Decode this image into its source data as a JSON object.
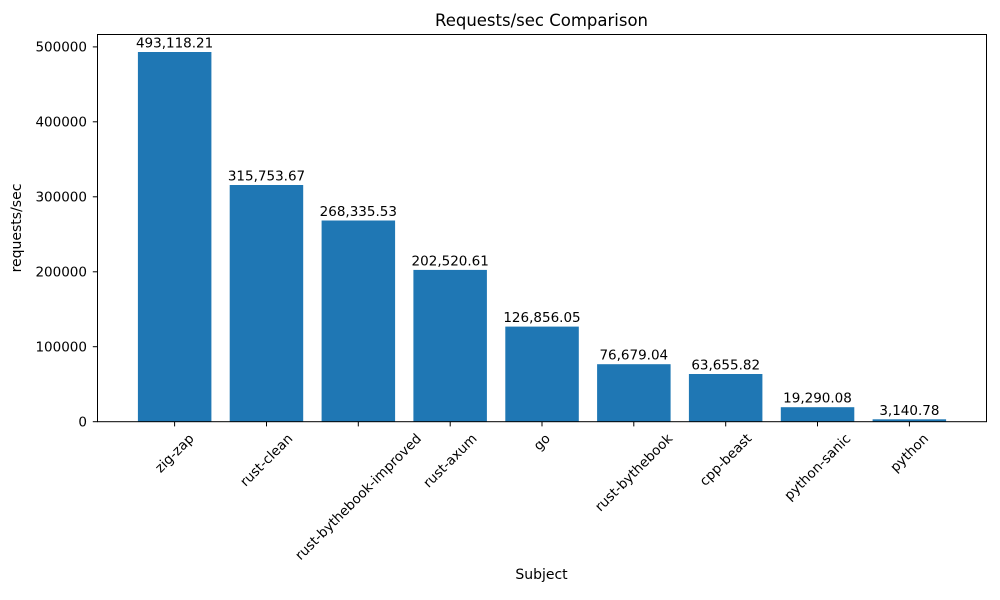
{
  "chart_data": {
    "type": "bar",
    "title": "Requests/sec Comparison",
    "xlabel": "Subject",
    "ylabel": "requests/sec",
    "categories": [
      "zig-zap",
      "rust-clean",
      "rust-bythebook-improved",
      "rust-axum",
      "go",
      "rust-bythebook",
      "cpp-beast",
      "python-sanic",
      "python"
    ],
    "values": [
      493118.21,
      315753.67,
      268335.53,
      202520.61,
      126856.05,
      76679.04,
      63655.82,
      19290.08,
      3140.78
    ],
    "bar_labels": [
      "493,118.21",
      "315,753.67",
      "268,335.53",
      "202,520.61",
      "126,856.05",
      "76,679.04",
      "63,655.82",
      "19,290.08",
      "3,140.78"
    ],
    "ytick_values": [
      0,
      100000,
      200000,
      300000,
      400000,
      500000
    ],
    "ytick_labels": [
      "0",
      "100000",
      "200000",
      "300000",
      "400000",
      "500000"
    ],
    "ylim": [
      0,
      516500
    ],
    "xtick_rotation_deg": 45,
    "bar_color": "#1f77b4",
    "axis_color": "#000000",
    "background_color": "#ffffff",
    "grid": false,
    "legend_position": "none"
  }
}
